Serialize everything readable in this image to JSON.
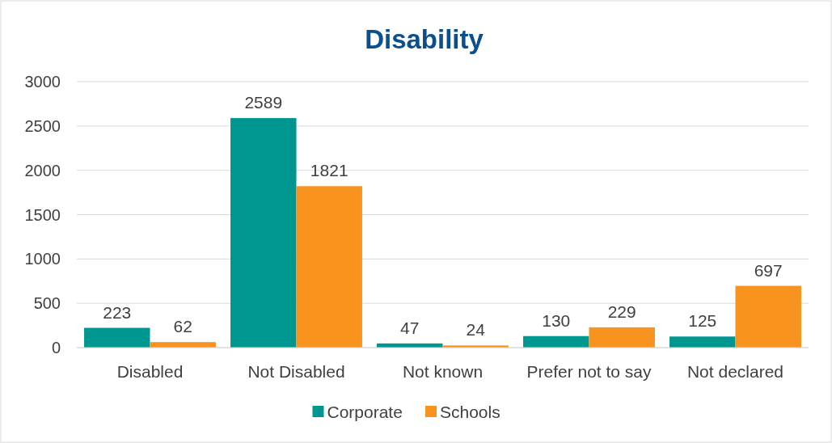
{
  "chart_data": {
    "type": "bar",
    "title": "Disability",
    "categories": [
      "Disabled",
      "Not Disabled",
      "Not known",
      "Prefer not to say",
      "Not declared"
    ],
    "series": [
      {
        "name": "Corporate",
        "color": "#009690",
        "values": [
          223,
          2589,
          47,
          130,
          125
        ]
      },
      {
        "name": "Schools",
        "color": "#f7931e",
        "values": [
          62,
          1821,
          24,
          229,
          697
        ]
      }
    ],
    "ylim": [
      0,
      3000
    ],
    "yticks": [
      0,
      500,
      1000,
      1500,
      2000,
      2500,
      3000
    ],
    "grid": "y",
    "legend": "bottom",
    "data_labels": true
  }
}
